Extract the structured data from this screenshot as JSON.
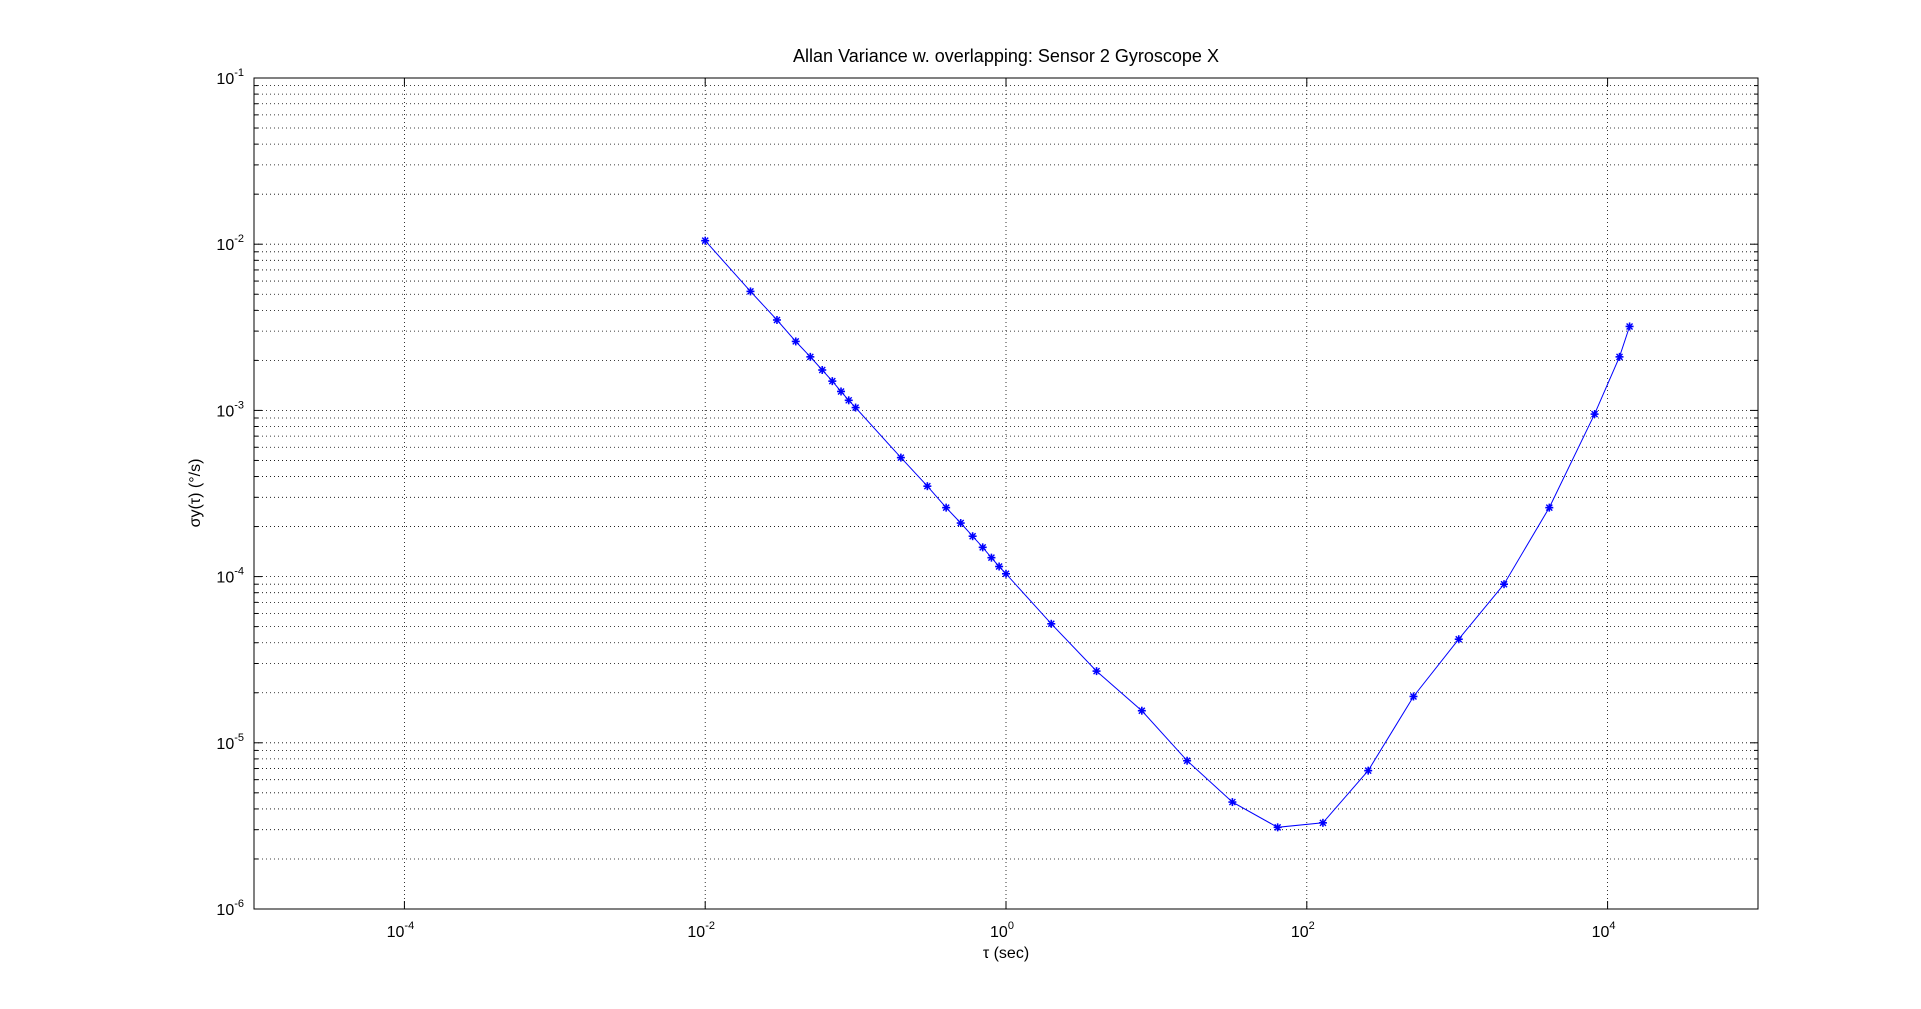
{
  "chart_data": {
    "type": "line",
    "title": "Allan Variance w. overlapping: Sensor 2 Gyroscope X",
    "xlabel": "τ (sec)",
    "ylabel": "σy(τ) (°/s)",
    "xscale": "log",
    "yscale": "log",
    "xlim": [
      1e-05,
      100000
    ],
    "ylim": [
      1e-06,
      0.1
    ],
    "grid": true,
    "x_tick_labels": [
      {
        "base": "10",
        "exp": "-4",
        "value": 0.0001
      },
      {
        "base": "10",
        "exp": "-2",
        "value": 0.01
      },
      {
        "base": "10",
        "exp": "0",
        "value": 1
      },
      {
        "base": "10",
        "exp": "2",
        "value": 100
      },
      {
        "base": "10",
        "exp": "4",
        "value": 10000
      }
    ],
    "y_tick_labels": [
      {
        "base": "10",
        "exp": "-1",
        "value": 0.1
      },
      {
        "base": "10",
        "exp": "-2",
        "value": 0.01
      },
      {
        "base": "10",
        "exp": "-3",
        "value": 0.001
      },
      {
        "base": "10",
        "exp": "-4",
        "value": 0.0001
      },
      {
        "base": "10",
        "exp": "-5",
        "value": 1e-05
      },
      {
        "base": "10",
        "exp": "-6",
        "value": 1e-06
      }
    ],
    "series": [
      {
        "color": "#0000ff",
        "marker": "asterisk",
        "x": [
          0.01,
          0.02,
          0.03,
          0.04,
          0.05,
          0.06,
          0.07,
          0.08,
          0.09,
          0.1,
          0.2,
          0.3,
          0.4,
          0.5,
          0.6,
          0.7,
          0.8,
          0.9,
          1,
          2,
          4,
          8,
          16,
          32,
          64,
          128,
          256,
          512,
          1024,
          2048,
          4096,
          8192,
          12000,
          14000
        ],
        "y": [
          0.0105,
          0.0052,
          0.0035,
          0.0026,
          0.0021,
          0.00175,
          0.0015,
          0.0013,
          0.00115,
          0.00104,
          0.00052,
          0.00035,
          0.00026,
          0.00021,
          0.000175,
          0.00015,
          0.00013,
          0.000115,
          0.000104,
          5.2e-05,
          2.7e-05,
          1.56e-05,
          7.8e-06,
          4.4e-06,
          3.1e-06,
          3.3e-06,
          6.8e-06,
          1.9e-05,
          4.2e-05,
          9e-05,
          0.00026,
          0.00095,
          0.0021,
          0.0032
        ]
      }
    ]
  }
}
